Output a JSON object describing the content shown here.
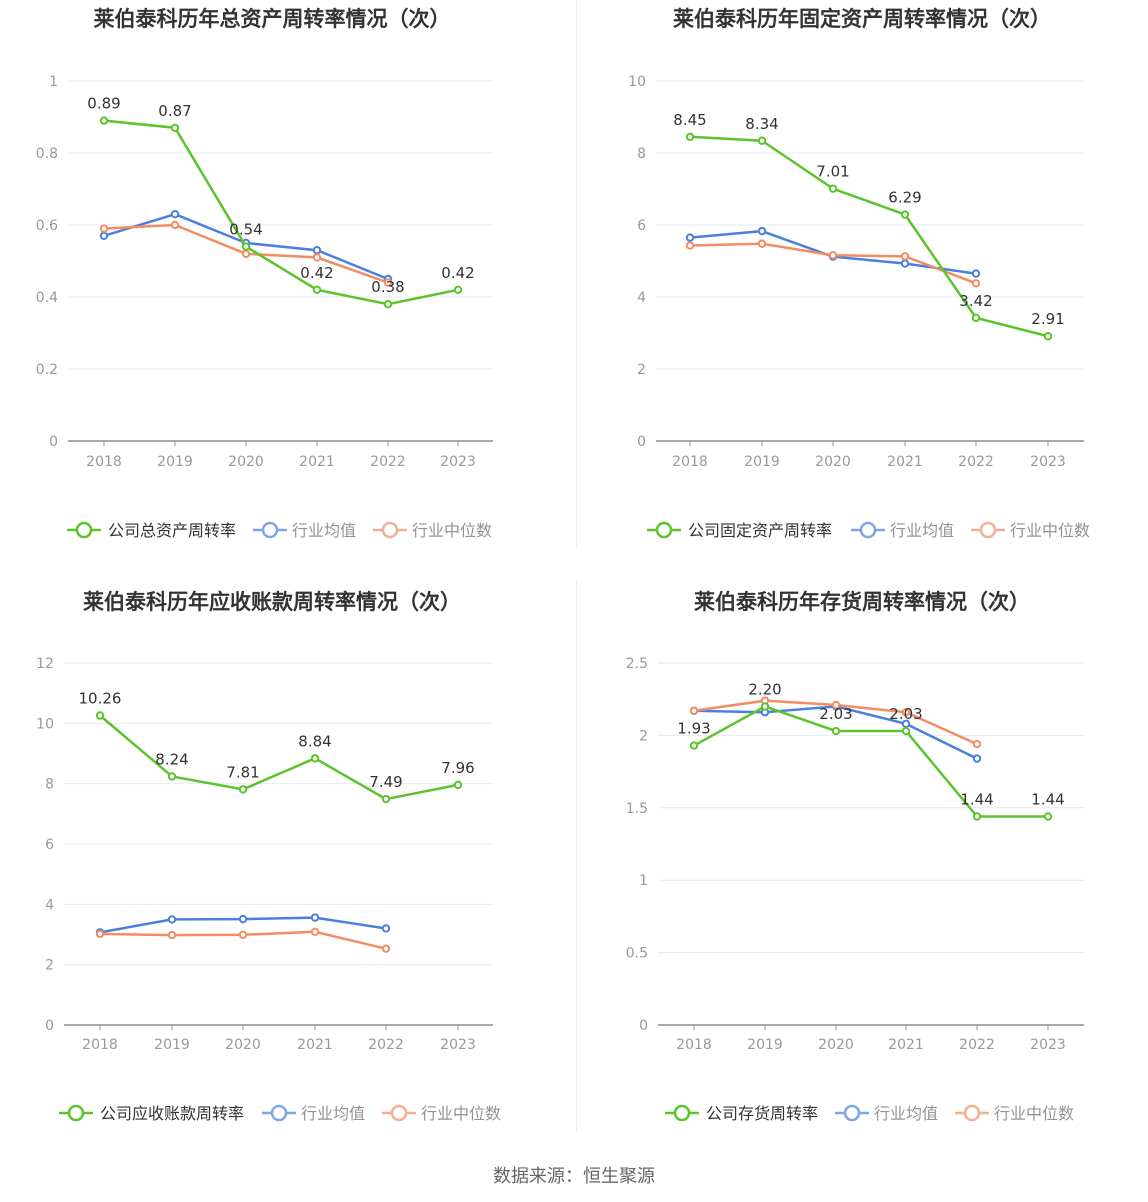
{
  "source_label": "数据来源：恒生聚源",
  "colors": {
    "company": "#5ac42b",
    "avg": "#4a7fe0",
    "median": "#f28c62",
    "axis": "#8c8c9a",
    "grid": "#e6e9f0",
    "title": "#333333",
    "tick": "#999999",
    "label": "#333333"
  },
  "legend_labels": {
    "avg": "行业均值",
    "median": "行业中位数"
  },
  "chart_data": [
    {
      "type": "line",
      "title": "莱伯泰科历年总资产周转率情况（次）",
      "categories": [
        "2018",
        "2019",
        "2020",
        "2021",
        "2022",
        "2023"
      ],
      "ylim": [
        0,
        1
      ],
      "yticks": [
        0,
        0.2,
        0.4,
        0.6,
        0.8,
        1
      ],
      "ytick_labels": [
        "0",
        "0.2",
        "0.4",
        "0.6",
        "0.8",
        "1"
      ],
      "grid": true,
      "legend": "bottom",
      "series": [
        {
          "name": "公司总资产周转率",
          "key": "company",
          "values": [
            0.89,
            0.87,
            0.54,
            0.42,
            0.38,
            0.42
          ],
          "labels": [
            "0.89",
            "0.87",
            "0.54",
            "0.42",
            "0.38",
            "0.42"
          ]
        },
        {
          "name": "行业均值",
          "key": "avg",
          "values": [
            0.57,
            0.63,
            0.55,
            0.53,
            0.45,
            null
          ]
        },
        {
          "name": "行业中位数",
          "key": "median",
          "values": [
            0.59,
            0.6,
            0.52,
            0.51,
            0.44,
            null
          ]
        }
      ]
    },
    {
      "type": "line",
      "title": "莱伯泰科历年固定资产周转率情况（次）",
      "categories": [
        "2018",
        "2019",
        "2020",
        "2021",
        "2022",
        "2023"
      ],
      "ylim": [
        0,
        10
      ],
      "yticks": [
        0,
        2,
        4,
        6,
        8,
        10
      ],
      "ytick_labels": [
        "0",
        "2",
        "4",
        "6",
        "8",
        "10"
      ],
      "grid": true,
      "legend": "bottom",
      "series": [
        {
          "name": "公司固定资产周转率",
          "key": "company",
          "values": [
            8.45,
            8.34,
            7.01,
            6.29,
            3.42,
            2.91
          ],
          "labels": [
            "8.45",
            "8.34",
            "7.01",
            "6.29",
            "3.42",
            "2.91"
          ]
        },
        {
          "name": "行业均值",
          "key": "avg",
          "values": [
            5.65,
            5.83,
            5.12,
            4.93,
            4.65,
            null
          ]
        },
        {
          "name": "行业中位数",
          "key": "median",
          "values": [
            5.43,
            5.48,
            5.16,
            5.13,
            4.38,
            null
          ]
        }
      ]
    },
    {
      "type": "line",
      "title": "莱伯泰科历年应收账款周转率情况（次）",
      "categories": [
        "2018",
        "2019",
        "2020",
        "2021",
        "2022",
        "2023"
      ],
      "ylim": [
        0,
        12
      ],
      "yticks": [
        0,
        2,
        4,
        6,
        8,
        10,
        12
      ],
      "ytick_labels": [
        "0",
        "2",
        "4",
        "6",
        "8",
        "10",
        "12"
      ],
      "grid": true,
      "legend": "bottom",
      "series": [
        {
          "name": "公司应收账款周转率",
          "key": "company",
          "values": [
            10.26,
            8.24,
            7.81,
            8.84,
            7.49,
            7.96
          ],
          "labels": [
            "10.26",
            "8.24",
            "7.81",
            "8.84",
            "7.49",
            "7.96"
          ]
        },
        {
          "name": "行业均值",
          "key": "avg",
          "values": [
            3.07,
            3.5,
            3.51,
            3.56,
            3.2,
            null
          ]
        },
        {
          "name": "行业中位数",
          "key": "median",
          "values": [
            3.02,
            2.98,
            2.99,
            3.09,
            2.53,
            null
          ]
        }
      ]
    },
    {
      "type": "line",
      "title": "莱伯泰科历年存货周转率情况（次）",
      "categories": [
        "2018",
        "2019",
        "2020",
        "2021",
        "2022",
        "2023"
      ],
      "ylim": [
        0,
        2.5
      ],
      "yticks": [
        0,
        0.5,
        1,
        1.5,
        2,
        2.5
      ],
      "ytick_labels": [
        "0",
        "0.5",
        "1",
        "1.5",
        "2",
        "2.5"
      ],
      "grid": true,
      "legend": "bottom",
      "series": [
        {
          "name": "公司存货周转率",
          "key": "company",
          "values": [
            1.93,
            2.2,
            2.03,
            2.03,
            1.44,
            1.44
          ],
          "labels": [
            "1.93",
            "2.20",
            "2.03",
            "2.03",
            "1.44",
            "1.44"
          ]
        },
        {
          "name": "行业均值",
          "key": "avg",
          "values": [
            2.17,
            2.16,
            2.2,
            2.08,
            1.84,
            null
          ]
        },
        {
          "name": "行业中位数",
          "key": "median",
          "values": [
            2.17,
            2.24,
            2.21,
            2.16,
            1.94,
            null
          ]
        }
      ]
    }
  ]
}
